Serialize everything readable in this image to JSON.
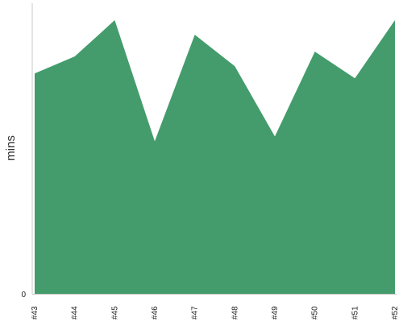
{
  "chart_data": {
    "type": "area",
    "ylabel": "mins",
    "xlabel": "",
    "title": "",
    "categories": [
      "#43",
      "#44",
      "#45",
      "#46",
      "#47",
      "#48",
      "#49",
      "#50",
      "#51",
      "#52"
    ],
    "values": [
      45.5,
      49,
      56.5,
      31.5,
      53.5,
      47,
      32.5,
      50,
      44.5,
      56.5
    ],
    "ylim": [
      0,
      60
    ],
    "y_ticks": [
      "0"
    ],
    "grid": false,
    "legend": "none",
    "colors": {
      "area": "#449c6c",
      "axis": "#c8c8c8",
      "text": "#222222"
    }
  }
}
